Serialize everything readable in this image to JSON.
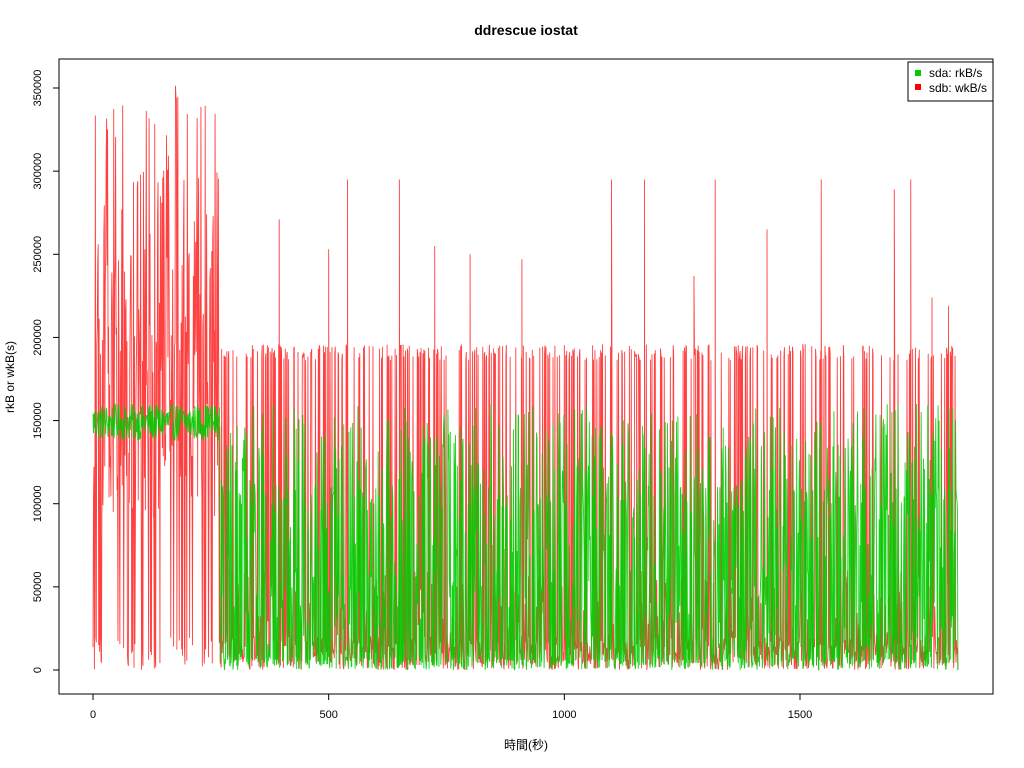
{
  "chart_data": {
    "type": "line",
    "title": "ddrescue iostat",
    "xlabel": "時間(秒)",
    "ylabel": "rkB or wkB(s)",
    "xlim": [
      0,
      1900
    ],
    "ylim": [
      0,
      350000
    ],
    "xticks": [
      0,
      500,
      1000,
      1500
    ],
    "yticks": [
      0,
      50000,
      100000,
      150000,
      200000,
      250000,
      300000,
      350000
    ],
    "x_tick_labels": [
      "0",
      "500",
      "1000",
      "1500"
    ],
    "y_tick_labels": [
      "0",
      "50000",
      "100000",
      "150000",
      "200000",
      "250000",
      "300000",
      "350000"
    ],
    "legend": {
      "position": "top-right"
    },
    "series": [
      {
        "name": "sda: rkB/s",
        "color": "#00cc00",
        "phases": [
          {
            "x_range": [
              0,
              270
            ],
            "min": 138000,
            "max": 160000,
            "typical": 150000
          },
          {
            "x_range": [
              270,
              1835
            ],
            "min": 0,
            "max": 160000,
            "typical": 60000
          }
        ]
      },
      {
        "name": "sdb: wkB/s",
        "color": "#ff0000",
        "phases": [
          {
            "x_range": [
              0,
              270
            ],
            "min": 0,
            "max": 352000,
            "typical": 150000
          },
          {
            "x_range": [
              270,
              1835
            ],
            "min": 0,
            "max": 196000,
            "typical": 20000
          }
        ],
        "spikes": [
          {
            "x": 540,
            "y": 295000
          },
          {
            "x": 650,
            "y": 295000
          },
          {
            "x": 725,
            "y": 255000
          },
          {
            "x": 395,
            "y": 271000
          },
          {
            "x": 500,
            "y": 253000
          },
          {
            "x": 800,
            "y": 250000
          },
          {
            "x": 910,
            "y": 247000
          },
          {
            "x": 1100,
            "y": 295000
          },
          {
            "x": 1170,
            "y": 295000
          },
          {
            "x": 1275,
            "y": 237000
          },
          {
            "x": 1320,
            "y": 295000
          },
          {
            "x": 1430,
            "y": 265000
          },
          {
            "x": 1545,
            "y": 295000
          },
          {
            "x": 1700,
            "y": 289000
          },
          {
            "x": 1735,
            "y": 295000
          },
          {
            "x": 1780,
            "y": 224000
          },
          {
            "x": 1815,
            "y": 219000
          }
        ]
      }
    ]
  }
}
